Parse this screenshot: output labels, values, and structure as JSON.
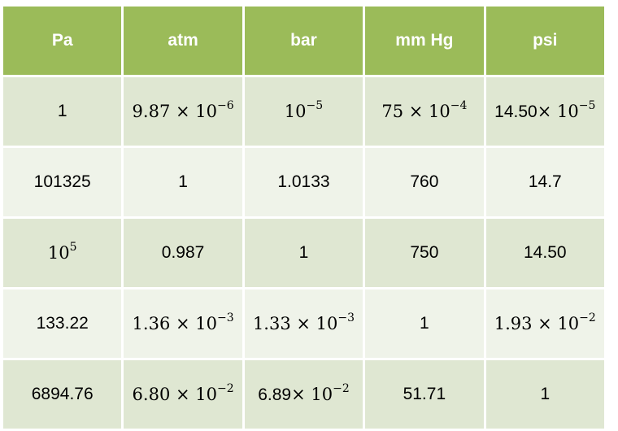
{
  "table": {
    "headers": [
      "Pa",
      "atm",
      "bar",
      "mm Hg",
      "psi"
    ],
    "rows": [
      [
        {
          "kind": "plain",
          "text": "1"
        },
        {
          "kind": "sci",
          "mant": "9.87",
          "exp": "−6"
        },
        {
          "kind": "pow",
          "exp": "−5"
        },
        {
          "kind": "sci",
          "mant": "75",
          "exp": "−4"
        },
        {
          "kind": "mixed",
          "mant": "14.50",
          "exp": "−5"
        }
      ],
      [
        {
          "kind": "plain",
          "text": "101325"
        },
        {
          "kind": "plain",
          "text": "1"
        },
        {
          "kind": "plain",
          "text": "1.0133"
        },
        {
          "kind": "plain",
          "text": "760"
        },
        {
          "kind": "plain",
          "text": "14.7"
        }
      ],
      [
        {
          "kind": "pow",
          "exp": "5"
        },
        {
          "kind": "plain",
          "text": "0.987"
        },
        {
          "kind": "plain",
          "text": "1"
        },
        {
          "kind": "plain",
          "text": "750"
        },
        {
          "kind": "plain",
          "text": "14.50"
        }
      ],
      [
        {
          "kind": "plain",
          "text": "133.22"
        },
        {
          "kind": "sci",
          "mant": "1.36",
          "exp": "−3"
        },
        {
          "kind": "sci",
          "mant": "1.33",
          "exp": "−3"
        },
        {
          "kind": "plain",
          "text": "1"
        },
        {
          "kind": "sci",
          "mant": "1.93",
          "exp": "−2"
        }
      ],
      [
        {
          "kind": "plain",
          "text": "6894.76"
        },
        {
          "kind": "sci",
          "mant": "6.80",
          "exp": "−2"
        },
        {
          "kind": "mixed",
          "mant": "6.89",
          "exp": "−2"
        },
        {
          "kind": "plain",
          "text": "51.71"
        },
        {
          "kind": "plain",
          "text": "1"
        }
      ]
    ]
  },
  "colors": {
    "header_bg": "#9bbb59",
    "row_band_dark": "#dfe7d2",
    "row_band_light": "#eff3e9"
  }
}
